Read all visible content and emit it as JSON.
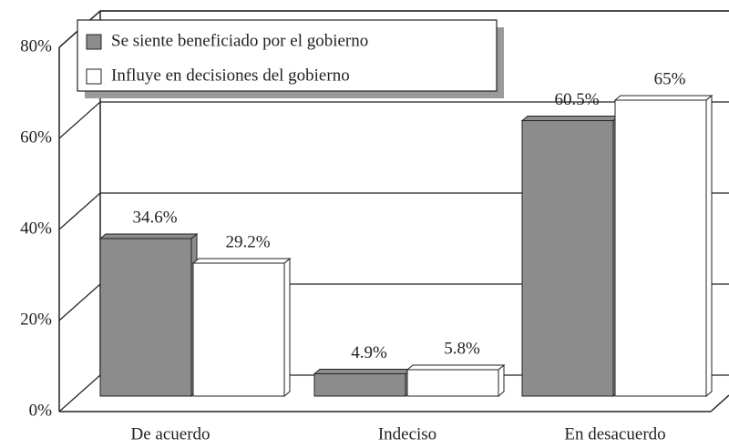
{
  "chart_data": {
    "type": "bar",
    "categories": [
      "De acuerdo",
      "Indeciso",
      "En desacuerdo"
    ],
    "series": [
      {
        "name": "Se siente beneficiado por el gobierno",
        "color": "#8c8c8c",
        "values": [
          34.6,
          4.9,
          60.5
        ],
        "value_labels": [
          "34.6%",
          "4.9%",
          "60.5%"
        ]
      },
      {
        "name": "Influye en decisiones del gobierno",
        "color": "#ffffff",
        "values": [
          29.2,
          5.8,
          65
        ],
        "value_labels": [
          "29.2%",
          "5.8%",
          "65%"
        ]
      }
    ],
    "ylim": [
      0,
      80
    ],
    "yticks": [
      {
        "value": 0,
        "label": "0%"
      },
      {
        "value": 20,
        "label": "20%"
      },
      {
        "value": 40,
        "label": "40%"
      },
      {
        "value": 60,
        "label": "60%"
      },
      {
        "value": 80,
        "label": "80%"
      }
    ],
    "grid": true,
    "legend": "top-left"
  }
}
